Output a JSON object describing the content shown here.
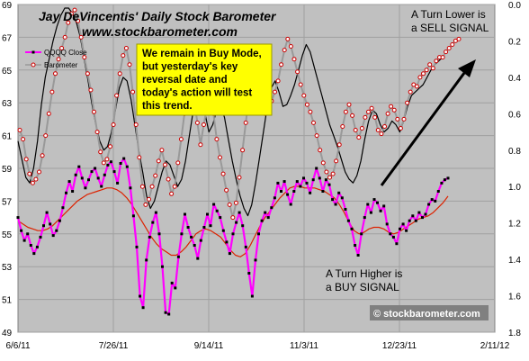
{
  "chart_data": {
    "type": "line",
    "title": "Jay DeVincentis' Daily Stock Barometer",
    "subtitle": "www.stockbarometer.com",
    "x_ticks": [
      "6/6/11",
      "7/26/11",
      "9/14/11",
      "11/3/11",
      "12/23/11",
      "2/11/12"
    ],
    "y_left_ticks": [
      69,
      67,
      65,
      63,
      61,
      59,
      57,
      55,
      53,
      51,
      49
    ],
    "y_left_range": [
      49,
      69
    ],
    "y_right_ticks": [
      "0.0",
      "0.2",
      "0.4",
      "0.6",
      "0.8",
      "1.0",
      "1.2",
      "1.4",
      "1.6",
      "1.8"
    ],
    "y_right_range": [
      0.0,
      1.8
    ],
    "y_right_inverted": true,
    "grid": true,
    "legend_placement": "top-left",
    "colors": {
      "qqqq_close": "#ff00ff",
      "barometer": "#999999",
      "barometer_marker": "#cc0000",
      "barometer_fast": "#000000",
      "qqqq_ma": "#dd2200",
      "plot_bg": "#c0c0c0",
      "note_bg": "#ffff00",
      "arrow": "#000000"
    },
    "series": [
      {
        "name": "QQQQ Close",
        "axis": "left",
        "values": [
          56.0,
          55.2,
          54.6,
          55.0,
          54.3,
          53.8,
          54.2,
          54.8,
          55.5,
          56.3,
          55.6,
          54.9,
          55.2,
          55.8,
          56.6,
          57.5,
          58.2,
          57.6,
          58.6,
          59.1,
          58.4,
          57.8,
          58.3,
          58.8,
          59.0,
          58.4,
          57.9,
          58.6,
          59.2,
          59.4,
          58.8,
          58.1,
          59.3,
          59.6,
          59.1,
          57.8,
          56.1,
          54.2,
          51.2,
          50.5,
          53.4,
          54.8,
          55.7,
          56.3,
          55.0,
          53.0,
          50.2,
          50.1,
          52.0,
          51.7,
          53.6,
          55.0,
          56.2,
          55.4,
          54.8,
          54.3,
          53.5,
          54.6,
          55.4,
          56.2,
          55.5,
          56.8,
          56.4,
          56.0,
          55.2,
          54.5,
          53.8,
          55.0,
          55.7,
          56.3,
          55.5,
          54.2,
          52.6,
          51.2,
          53.4,
          55.0,
          55.8,
          56.3,
          56.0,
          56.6,
          57.2,
          58.1,
          57.6,
          58.2,
          57.4,
          56.8,
          57.6,
          58.2,
          57.9,
          58.4,
          58.1,
          57.5,
          58.3,
          59.0,
          58.4,
          57.6,
          58.3,
          58.0,
          57.1,
          56.8,
          57.5,
          57.2,
          56.5,
          55.8,
          55.3,
          54.3,
          53.7,
          55.0,
          56.0,
          56.8,
          56.3,
          57.1,
          56.9,
          56.4,
          56.7,
          55.6,
          55.0,
          54.8,
          54.4,
          55.3,
          55.6,
          55.2,
          55.8,
          56.1,
          55.8,
          56.3,
          56.0,
          56.2,
          56.8,
          57.1,
          57.0,
          57.6,
          58.1,
          58.3,
          58.4
        ]
      },
      {
        "name": "Barometer",
        "axis": "right",
        "values": [
          0.69,
          0.74,
          0.85,
          0.93,
          0.98,
          0.96,
          0.92,
          0.83,
          0.72,
          0.6,
          0.48,
          0.38,
          0.3,
          0.24,
          0.18,
          0.1,
          0.05,
          0.03,
          0.09,
          0.18,
          0.29,
          0.38,
          0.47,
          0.59,
          0.7,
          0.81,
          0.87,
          0.85,
          0.78,
          0.66,
          0.5,
          0.38,
          0.28,
          0.24,
          0.33,
          0.48,
          0.66,
          0.84,
          1.0,
          1.1,
          1.07,
          1.0,
          0.94,
          0.86,
          0.8,
          0.88,
          0.96,
          1.04,
          1.0,
          0.87,
          0.74,
          0.6,
          0.48,
          0.44,
          0.52,
          0.65,
          0.77,
          0.66,
          0.56,
          0.51,
          0.6,
          0.74,
          0.84,
          0.93,
          1.02,
          1.1,
          1.17,
          1.09,
          0.95,
          0.8,
          0.65,
          0.5,
          0.38,
          0.31,
          0.4,
          0.53,
          0.6,
          0.58,
          0.53,
          0.48,
          0.42,
          0.33,
          0.25,
          0.19,
          0.23,
          0.3,
          0.37,
          0.44,
          0.5,
          0.55,
          0.59,
          0.65,
          0.72,
          0.8,
          0.87,
          0.92,
          0.95,
          0.93,
          0.86,
          0.77,
          0.67,
          0.59,
          0.55,
          0.61,
          0.69,
          0.73,
          0.68,
          0.62,
          0.59,
          0.57,
          0.62,
          0.69,
          0.71,
          0.67,
          0.6,
          0.56,
          0.58,
          0.63,
          0.68,
          0.63,
          0.54,
          0.48,
          0.44,
          0.45,
          0.4,
          0.38,
          0.36,
          0.33,
          0.35,
          0.31,
          0.29,
          0.29,
          0.26,
          0.24,
          0.22,
          0.2,
          0.19
        ]
      },
      {
        "name": "",
        "axis": "right",
        "values": [
          0.75,
          0.85,
          0.95,
          0.98,
          0.9,
          0.75,
          0.55,
          0.4,
          0.3,
          0.2,
          0.12,
          0.06,
          0.02,
          0.02,
          0.05,
          0.1,
          0.18,
          0.3,
          0.42,
          0.55,
          0.66,
          0.75,
          0.8,
          0.78,
          0.7,
          0.58,
          0.46,
          0.4,
          0.42,
          0.52,
          0.66,
          0.8,
          0.92,
          1.05,
          1.12,
          1.08,
          1.0,
          0.92,
          0.86,
          0.88,
          0.94,
          1.0,
          0.96,
          0.86,
          0.72,
          0.58,
          0.5,
          0.52,
          0.6,
          0.7,
          0.66,
          0.58,
          0.55,
          0.62,
          0.74,
          0.86,
          0.96,
          1.05,
          1.12,
          1.16,
          1.1,
          0.98,
          0.84,
          0.7,
          0.56,
          0.46,
          0.42,
          0.48,
          0.56,
          0.55,
          0.5,
          0.44,
          0.36,
          0.28,
          0.22,
          0.26,
          0.34,
          0.42,
          0.5,
          0.58,
          0.66,
          0.72,
          0.78,
          0.85,
          0.92,
          0.96,
          0.98,
          0.94,
          0.86,
          0.74,
          0.64,
          0.58,
          0.6,
          0.66,
          0.7,
          0.68,
          0.64,
          0.66,
          0.7,
          0.64,
          0.56,
          0.5,
          0.48,
          0.46,
          0.44,
          0.4,
          0.36,
          0.33,
          0.31,
          0.29
        ]
      },
      {
        "name": "",
        "axis": "left",
        "values": [
          55.8,
          55.6,
          55.4,
          55.3,
          55.2,
          55.2,
          55.3,
          55.5,
          55.8,
          56.1,
          56.4,
          56.7,
          57.0,
          57.2,
          57.4,
          57.5,
          57.6,
          57.7,
          57.8,
          57.8,
          57.7,
          57.5,
          57.2,
          56.8,
          56.3,
          55.8,
          55.3,
          54.8,
          54.4,
          54.1,
          53.9,
          53.7,
          53.7,
          53.9,
          54.2,
          54.6,
          55.0,
          55.2,
          55.3,
          55.2,
          55.0,
          54.8,
          54.4,
          54.0,
          53.7,
          53.6,
          53.8,
          54.3,
          54.9,
          55.5,
          56.0,
          56.4,
          56.8,
          57.2,
          57.5,
          57.8,
          57.9,
          57.9,
          57.8,
          57.8,
          57.8,
          57.7,
          57.6,
          57.4,
          57.2,
          56.8,
          56.3,
          55.7,
          55.2,
          55.0,
          55.1,
          55.3,
          55.4,
          55.4,
          55.3,
          55.1,
          55.0,
          55.1,
          55.3,
          55.5,
          55.7,
          55.9,
          56.0,
          56.1,
          56.3,
          56.6,
          56.9,
          57.3
        ]
      }
    ],
    "annotations": {
      "note_lines": [
        "We remain in Buy Mode,",
        "but yesterday's key",
        "reversal date and",
        "today's action will test",
        "this trend."
      ],
      "sell_lines": [
        "A Turn Lower is",
        "a SELL  SIGNAL"
      ],
      "buy_lines": [
        "A Turn Higher is",
        "a BUY  SIGNAL"
      ],
      "copyright": "© stockbarometer.com"
    }
  }
}
